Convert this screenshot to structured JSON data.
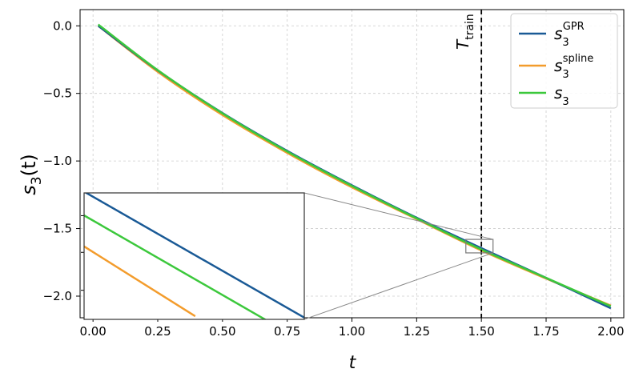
{
  "chart_data": {
    "type": "line",
    "xlabel": "t",
    "ylabel": {
      "base": "s",
      "sub": "3",
      "arg": "(t)"
    },
    "xlim": [
      -0.05,
      2.05
    ],
    "ylim": [
      -2.16,
      0.12
    ],
    "x_ticks": [
      0.0,
      0.25,
      0.5,
      0.75,
      1.0,
      1.25,
      1.5,
      1.75,
      2.0
    ],
    "x_tick_labels": [
      "0.00",
      "0.25",
      "0.50",
      "0.75",
      "1.00",
      "1.25",
      "1.50",
      "1.75",
      "2.00"
    ],
    "y_ticks": [
      0.0,
      -0.5,
      -1.0,
      -1.5,
      -2.0
    ],
    "y_tick_labels": [
      "0.0",
      "−0.5",
      "−1.0",
      "−1.5",
      "−2.0"
    ],
    "grid": true,
    "legend_position": "top-right",
    "vline": {
      "x": 1.5,
      "label_base": "T",
      "label_sub": "train",
      "style": "dashed"
    },
    "series": [
      {
        "name": "s3 GPR",
        "label_base": "s",
        "label_sub": "3",
        "label_sup": "GPR",
        "color": "#1a5a96",
        "x": [
          0.02,
          0.25,
          0.5,
          0.75,
          1.0,
          1.25,
          1.5,
          1.75,
          2.0
        ],
        "y": [
          0.0,
          -0.33,
          -0.645,
          -0.925,
          -1.18,
          -1.42,
          -1.645,
          -1.865,
          -2.09
        ]
      },
      {
        "name": "s3 spline",
        "label_base": "s",
        "label_sub": "3",
        "label_sup": "spline",
        "color": "#f39c2c",
        "x": [
          0.02,
          0.25,
          0.5,
          0.75,
          1.0,
          1.25,
          1.5,
          1.75,
          2.0
        ],
        "y": [
          0.0,
          -0.34,
          -0.66,
          -0.94,
          -1.195,
          -1.43,
          -1.662,
          -1.87,
          -2.07
        ]
      },
      {
        "name": "s3",
        "label_base": "s",
        "label_sub": "3",
        "label_sup": "",
        "color": "#3cc83c",
        "x": [
          0.02,
          0.25,
          0.5,
          0.75,
          1.0,
          1.25,
          1.5,
          1.75,
          2.0
        ],
        "y": [
          0.01,
          -0.328,
          -0.648,
          -0.93,
          -1.185,
          -1.425,
          -1.655,
          -1.865,
          -2.075
        ]
      }
    ],
    "inset": {
      "xlim": [
        1.44,
        1.545
      ],
      "ylim": [
        -1.68,
        -1.58
      ]
    }
  }
}
